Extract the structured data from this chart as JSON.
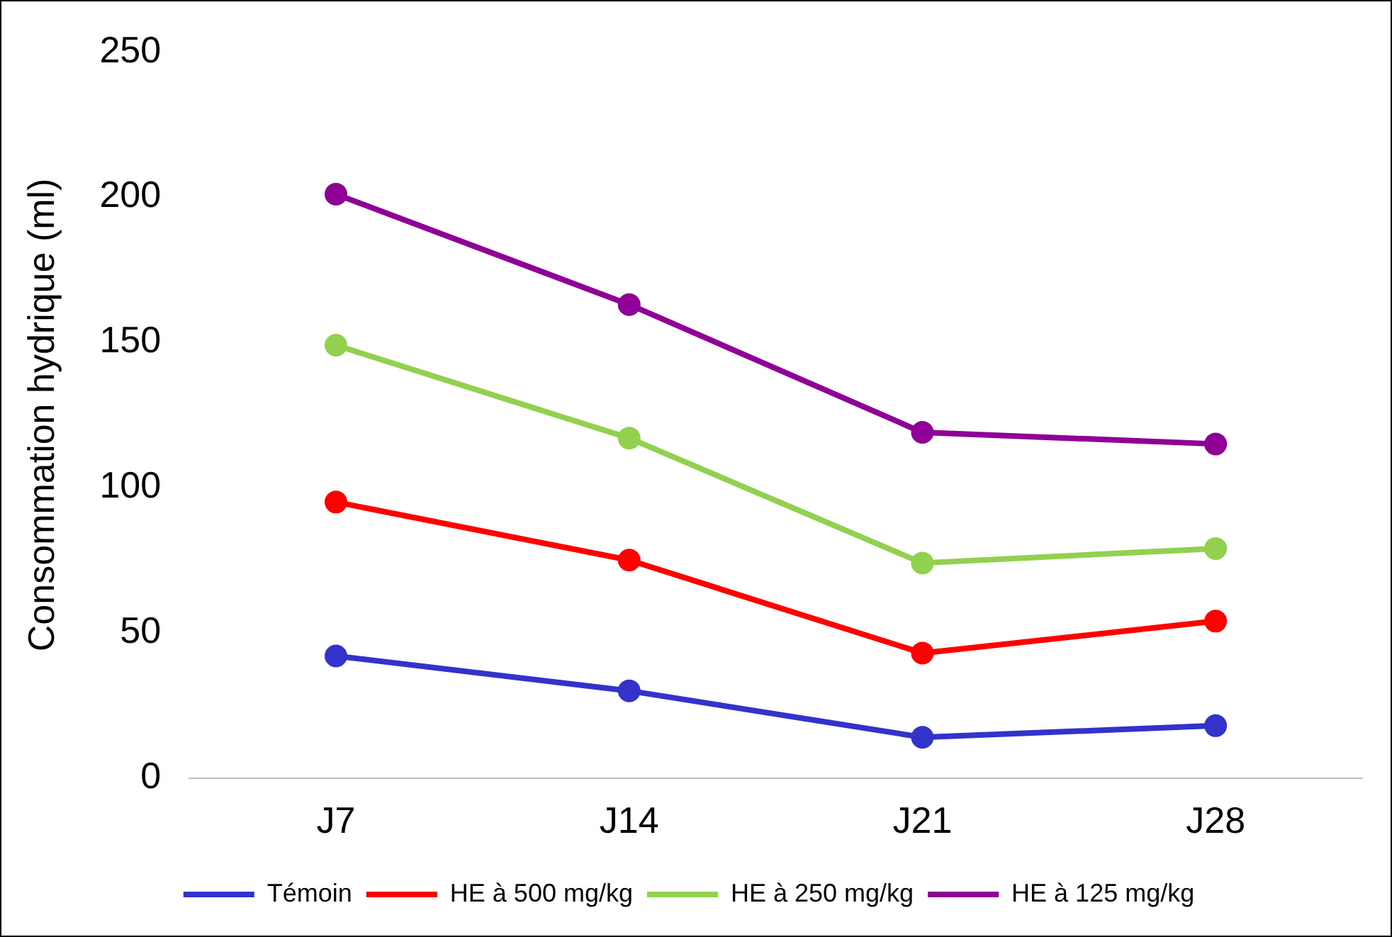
{
  "chart_data": {
    "type": "line",
    "ylabel": "Consommation hydrique (ml)",
    "categories": [
      "J7",
      "J14",
      "J21",
      "J28"
    ],
    "series": [
      {
        "name": "Témoin",
        "color": "#3333cc",
        "values": [
          42,
          30,
          14,
          18
        ]
      },
      {
        "name": "HE à 500 mg/kg",
        "color": "#ff0000",
        "values": [
          95,
          75,
          43,
          54
        ]
      },
      {
        "name": "HE à 250 mg/kg",
        "color": "#92d050",
        "values": [
          149,
          117,
          74,
          79
        ]
      },
      {
        "name": "HE à 125 mg/kg",
        "color": "#8e0096",
        "values": [
          201,
          163,
          119,
          115
        ]
      }
    ],
    "ylim": [
      0,
      250
    ],
    "yticks": [
      0,
      50,
      100,
      150,
      200,
      250
    ],
    "grid": false,
    "legend": "bottom",
    "marker": "circle",
    "line_style": "solid"
  }
}
